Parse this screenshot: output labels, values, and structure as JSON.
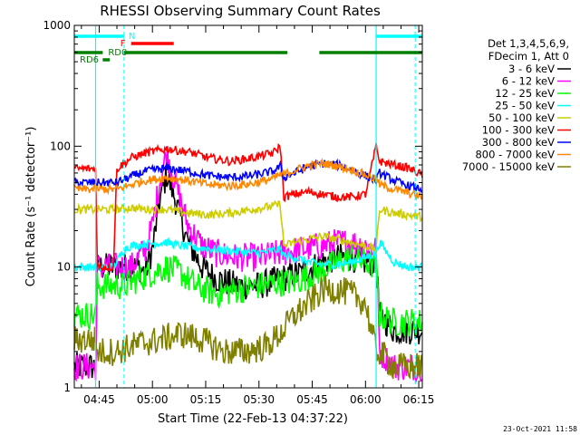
{
  "chart_data": {
    "type": "line",
    "title": "RHESSI Observing Summary Count Rates",
    "xlabel": "Start Time (22-Feb-13 04:37:22)",
    "ylabel": "Count Rate (s⁻¹ detector⁻¹)",
    "y_scale": "log",
    "ylim": [
      1,
      1000
    ],
    "xlim_minutes": [
      38,
      136
    ],
    "x_tick_labels": [
      "04:45",
      "05:00",
      "05:15",
      "05:30",
      "05:45",
      "06:00",
      "06:15"
    ],
    "y_tick_labels": [
      "1",
      "10",
      "100",
      "1000"
    ],
    "legend": {
      "placement": "right",
      "header": [
        "Det 1,3,4,5,6,9,",
        "FDecim 1, Att 0"
      ]
    },
    "series": [
      {
        "name": "3 - 6 keV",
        "color": "#000000",
        "x": [
          38,
          44,
          44.5,
          49,
          52,
          54,
          56,
          58,
          60,
          62,
          64,
          66,
          68,
          70,
          74,
          78,
          84,
          90,
          96,
          102,
          108,
          112,
          116,
          120,
          123,
          124,
          128,
          132,
          136
        ],
        "y": [
          1.5,
          1.5,
          10,
          10,
          10,
          10,
          10,
          9,
          14,
          35,
          58,
          40,
          25,
          16,
          10,
          8,
          7,
          7,
          8,
          9,
          11,
          12,
          12,
          11,
          11,
          4,
          3,
          3,
          3
        ]
      },
      {
        "name": "6 - 12 keV",
        "color": "#ff00ff",
        "x": [
          38,
          44,
          44.5,
          49,
          52,
          54,
          56,
          58,
          60,
          62,
          64,
          66,
          68,
          70,
          74,
          78,
          84,
          90,
          96,
          102,
          108,
          112,
          116,
          120,
          123,
          124,
          128,
          132,
          136
        ],
        "y": [
          1.5,
          1.5,
          10,
          10,
          10,
          10,
          12,
          14,
          22,
          50,
          88,
          55,
          35,
          22,
          15,
          13,
          12,
          12,
          13,
          14,
          15,
          16,
          16,
          15,
          14,
          2,
          1.5,
          1.5,
          1.5
        ]
      },
      {
        "name": "12 - 25 keV",
        "color": "#00ff00",
        "x": [
          38,
          44,
          44.5,
          49,
          52,
          54,
          56,
          60,
          64,
          68,
          72,
          78,
          84,
          90,
          96,
          100,
          104,
          108,
          112,
          116,
          120,
          123,
          124,
          128,
          132,
          136
        ],
        "y": [
          4,
          4,
          7,
          7,
          7,
          7.5,
          8,
          9,
          10,
          9,
          7,
          6,
          6.5,
          7,
          7.5,
          7.5,
          8.5,
          9.5,
          11,
          12,
          11,
          10,
          4,
          3.5,
          3.5,
          3.5
        ]
      },
      {
        "name": "25 - 50 keV",
        "color": "#00ffff",
        "x": [
          38,
          44,
          44.5,
          49,
          52,
          54,
          58,
          64,
          68,
          72,
          78,
          84,
          90,
          96,
          97,
          100,
          104,
          108,
          112,
          116,
          120,
          123,
          124,
          128,
          132,
          136
        ],
        "y": [
          10,
          10,
          10,
          10,
          14,
          15,
          15.5,
          16,
          15,
          14.5,
          14,
          13.5,
          13,
          14,
          12.5,
          12,
          11,
          10.5,
          10.5,
          11,
          12,
          13,
          16,
          11,
          10,
          10
        ]
      },
      {
        "name": "50 - 100 keV",
        "color": "#cccc00",
        "x": [
          38,
          44,
          45,
          50,
          54,
          58,
          64,
          70,
          76,
          82,
          88,
          94,
          96,
          97,
          100,
          104,
          108,
          112,
          116,
          120,
          123,
          124,
          128,
          132,
          136
        ],
        "y": [
          30,
          30,
          30,
          30,
          31,
          30,
          30,
          28,
          27,
          28,
          30,
          32,
          33,
          15,
          16,
          17,
          18,
          17,
          16,
          15,
          14,
          30,
          28,
          27,
          26
        ]
      },
      {
        "name": "100 - 300 keV",
        "color": "#ff0000",
        "x": [
          38,
          44,
          44.5,
          49,
          50,
          54,
          58,
          64,
          70,
          76,
          82,
          88,
          94,
          96,
          97,
          100,
          104,
          108,
          112,
          116,
          120,
          123,
          124,
          128,
          132,
          136
        ],
        "y": [
          65,
          65,
          10,
          10,
          65,
          80,
          88,
          95,
          90,
          80,
          75,
          80,
          88,
          100,
          38,
          40,
          42,
          40,
          38,
          38,
          40,
          100,
          75,
          70,
          66,
          58
        ]
      },
      {
        "name": "300 - 800 keV",
        "color": "#0000ff",
        "x": [
          38,
          44,
          45,
          50,
          54,
          58,
          64,
          70,
          76,
          82,
          88,
          94,
          96,
          97,
          100,
          104,
          108,
          112,
          116,
          120,
          123,
          124,
          128,
          132,
          136
        ],
        "y": [
          50,
          50,
          50,
          50,
          56,
          62,
          66,
          62,
          57,
          55,
          57,
          62,
          68,
          55,
          60,
          68,
          72,
          70,
          64,
          57,
          52,
          60,
          52,
          47,
          44
        ]
      },
      {
        "name": "800 - 7000 keV",
        "color": "#ff8800",
        "x": [
          38,
          44,
          45,
          50,
          54,
          58,
          64,
          70,
          76,
          82,
          88,
          94,
          96,
          97,
          100,
          104,
          108,
          112,
          116,
          120,
          123,
          124,
          128,
          132,
          136
        ],
        "y": [
          44,
          44,
          44,
          44,
          48,
          52,
          55,
          52,
          48,
          47,
          49,
          54,
          58,
          58,
          63,
          69,
          72,
          69,
          64,
          58,
          53,
          48,
          44,
          41,
          38
        ]
      },
      {
        "name": "7000 - 15000 keV",
        "color": "#808000",
        "x": [
          38,
          44,
          44.5,
          50,
          56,
          62,
          68,
          74,
          80,
          86,
          92,
          96,
          100,
          104,
          108,
          112,
          116,
          120,
          123,
          124,
          128,
          132,
          136
        ],
        "y": [
          2.5,
          2.5,
          2,
          2,
          2.3,
          2.5,
          2.8,
          2.5,
          2,
          2,
          2.2,
          2.8,
          4,
          5,
          6.5,
          6.5,
          6,
          5,
          2,
          2,
          1.5,
          1.5,
          1.5
        ]
      }
    ],
    "flag_bars": [
      {
        "label": "N",
        "color": "#00ffff",
        "segments": [
          [
            38,
            52
          ],
          [
            123,
            136
          ]
        ]
      },
      {
        "label": "F",
        "color": "#ff0000",
        "segments": [
          [
            54,
            66
          ]
        ]
      },
      {
        "label": "RD0",
        "color": "#008000",
        "segments": [
          [
            38,
            46
          ],
          [
            52,
            98
          ],
          [
            107,
            136
          ]
        ]
      },
      {
        "label": "RD6",
        "color": "#008000",
        "segments": [
          [
            46,
            48
          ]
        ]
      }
    ],
    "saa_markers_minutes": [
      52,
      123,
      134
    ],
    "axis_edge_lines": [
      {
        "color": "#00ffff",
        "x": [
          44,
          123
        ]
      }
    ]
  },
  "footer": {
    "timestamp": "23-Oct-2021 11:58"
  }
}
